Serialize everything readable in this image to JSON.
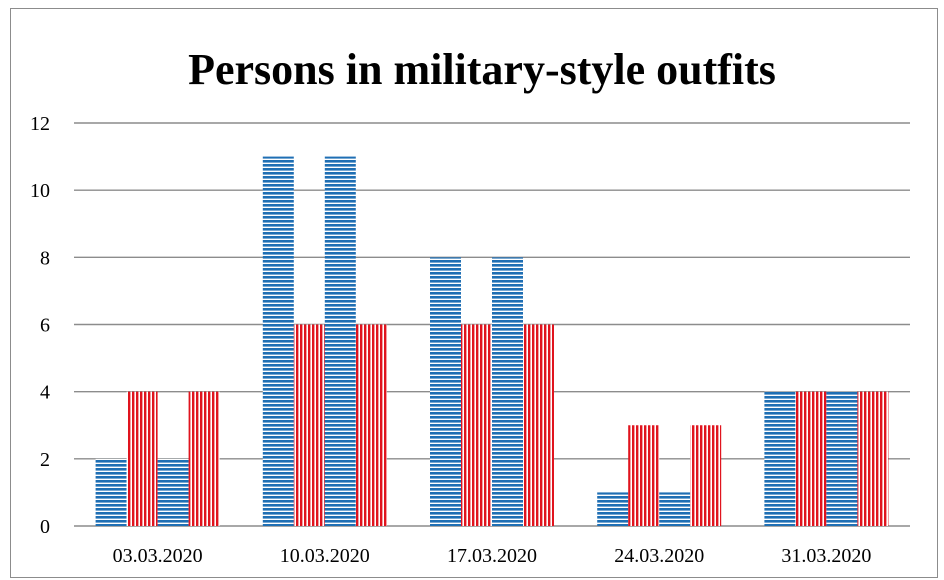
{
  "chart_data": {
    "type": "bar",
    "title": "Persons in military-style outfits",
    "xlabel": "",
    "ylabel": "",
    "ylim": [
      0,
      12
    ],
    "yticks": [
      0,
      2,
      4,
      6,
      8,
      10,
      12
    ],
    "grid": true,
    "categories": [
      "03.03.2020",
      "10.03.2020",
      "17.03.2020",
      "24.03.2020",
      "31.03.2020"
    ],
    "series": [
      {
        "values": [
          2,
          11,
          8,
          1,
          4
        ],
        "color": "#1f6fb4",
        "pattern": "horizontal-stripes"
      },
      {
        "values": [
          4,
          6,
          6,
          3,
          4
        ],
        "color": "#e0141e",
        "pattern": "vertical-stripes"
      },
      {
        "values": [
          2,
          11,
          8,
          1,
          4
        ],
        "color": "#1f6fb4",
        "pattern": "horizontal-stripes"
      },
      {
        "values": [
          4,
          6,
          6,
          3,
          4
        ],
        "color": "#e0141e",
        "pattern": "vertical-stripes"
      }
    ]
  }
}
